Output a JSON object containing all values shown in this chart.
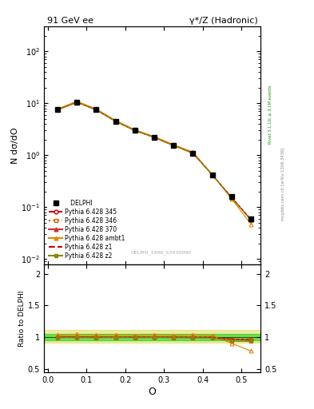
{
  "title_left": "91 GeV ee",
  "title_right": "γ*/Z (Hadronic)",
  "ylabel_main": "N dσ/dO",
  "ylabel_ratio": "Ratio to DELPHI",
  "xlabel": "O",
  "watermark": "DELPHI_1996_S3430090",
  "right_label_top": "Rivet 3.1.10; ≥ 3.1M events",
  "right_label_bot": "mcplots.cern.ch [arXiv:1306.3436]",
  "x": [
    0.025,
    0.075,
    0.125,
    0.175,
    0.225,
    0.275,
    0.325,
    0.375,
    0.425,
    0.475,
    0.525
  ],
  "delphi_y": [
    7.5,
    10.5,
    7.5,
    4.5,
    3.0,
    2.2,
    1.55,
    1.1,
    0.42,
    0.16,
    0.06
  ],
  "delphi_yerr": [
    0.3,
    0.4,
    0.3,
    0.2,
    0.12,
    0.09,
    0.06,
    0.05,
    0.02,
    0.01,
    0.004
  ],
  "p345_y": [
    7.5,
    10.5,
    7.5,
    4.5,
    3.0,
    2.2,
    1.55,
    1.1,
    0.42,
    0.155,
    0.058
  ],
  "p346_y": [
    7.5,
    10.5,
    7.5,
    4.5,
    3.0,
    2.2,
    1.55,
    1.1,
    0.42,
    0.155,
    0.058
  ],
  "p370_y": [
    7.6,
    10.6,
    7.55,
    4.52,
    3.02,
    2.21,
    1.56,
    1.1,
    0.42,
    0.155,
    0.057
  ],
  "pambt1_y": [
    7.8,
    11.0,
    7.8,
    4.7,
    3.1,
    2.3,
    1.6,
    1.15,
    0.43,
    0.145,
    0.047
  ],
  "pz1_y": [
    7.5,
    10.5,
    7.5,
    4.5,
    3.0,
    2.2,
    1.55,
    1.1,
    0.42,
    0.155,
    0.058
  ],
  "pz2_y": [
    7.45,
    10.45,
    7.45,
    4.48,
    2.98,
    2.19,
    1.54,
    1.09,
    0.415,
    0.15,
    0.056
  ],
  "p345_color": "#cc0000",
  "p346_color": "#cc6600",
  "p370_color": "#cc3333",
  "pambt1_color": "#dd8800",
  "pz1_color": "#cc0000",
  "pz2_color": "#888800",
  "ylim_main": [
    0.008,
    300
  ],
  "ylim_ratio": [
    0.45,
    2.15
  ],
  "xlim": [
    -0.01,
    0.55
  ],
  "ratio_band_green": "#00cc00",
  "ratio_band_yellow": "#cccc00"
}
